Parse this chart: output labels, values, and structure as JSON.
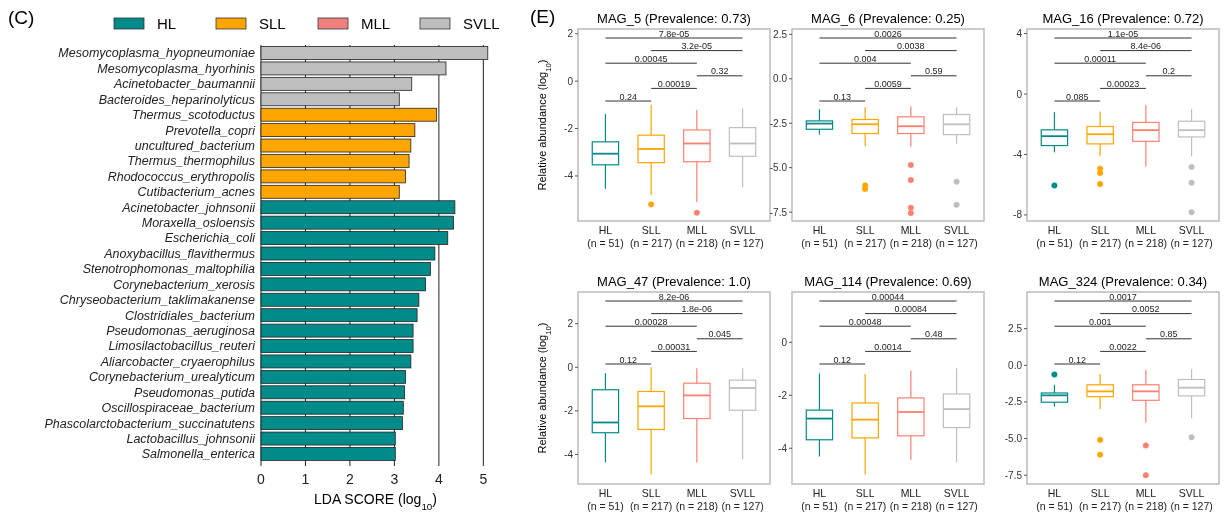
{
  "chart_data": [
    {
      "type": "bar",
      "orientation": "horizontal",
      "categories": [
        "Mesomycoplasma_hyopneumoniae",
        "Mesomycoplasma_hyorhinis",
        "Acinetobacter_baumannii",
        "Bacteroides_heparinolyticus",
        "Thermus_scotoductus",
        "Prevotella_copri",
        "uncultured_bacterium",
        "Thermus_thermophilus",
        "Rhodococcus_erythropolis",
        "Cutibacterium_acnes",
        "Acinetobacter_johnsonii",
        "Moraxella_osloensis",
        "Escherichia_coli",
        "Anoxybacillus_flavithermus",
        "Stenotrophomonas_maltophilia",
        "Corynebacterium_xerosis",
        "Chryseobacterium_taklimakanense",
        "Clostridiales_bacterium",
        "Pseudomonas_aeruginosa",
        "Limosilactobacillus_reuteri",
        "Aliarcobacter_cryaerophilus",
        "Corynebacterium_urealyticum",
        "Pseudomonas_putida",
        "Oscillospiraceae_bacterium",
        "Phascolarctobacterium_succinatutens",
        "Lactobacillus_johnsonii",
        "Salmonella_enterica"
      ],
      "series": [
        {
          "name": "HL",
          "color": "#008b8b",
          "values": [
            null,
            null,
            null,
            null,
            null,
            null,
            null,
            null,
            null,
            null,
            4.36,
            4.33,
            4.2,
            3.91,
            3.81,
            3.7,
            3.55,
            3.51,
            3.42,
            3.42,
            3.37,
            3.25,
            3.23,
            3.2,
            3.18,
            3.02,
            3.02
          ]
        },
        {
          "name": "SLL",
          "color": "#ffa500",
          "values": [
            null,
            null,
            null,
            null,
            3.95,
            3.46,
            3.37,
            3.33,
            3.25,
            3.11,
            null,
            null,
            null,
            null,
            null,
            null,
            null,
            null,
            null,
            null,
            null,
            null,
            null,
            null,
            null,
            null,
            null
          ]
        },
        {
          "name": "MLL",
          "color": "#f08080",
          "values": [
            null,
            null,
            null,
            null,
            null,
            null,
            null,
            null,
            null,
            null,
            null,
            null,
            null,
            null,
            null,
            null,
            null,
            null,
            null,
            null,
            null,
            null,
            null,
            null,
            null,
            null,
            null
          ]
        },
        {
          "name": "SVLL",
          "color": "#bebebe",
          "values": [
            5.1,
            4.16,
            3.39,
            3.11,
            null,
            null,
            null,
            null,
            null,
            null,
            null,
            null,
            null,
            null,
            null,
            null,
            null,
            null,
            null,
            null,
            null,
            null,
            null,
            null,
            null,
            null,
            null
          ]
        }
      ],
      "xlim": [
        0,
        5.15
      ],
      "xticks": [
        0,
        1,
        2,
        3,
        4,
        5
      ],
      "xlabel": "LDA SCORE (log$_{10}$)",
      "grid": "x",
      "legend": "top",
      "annotations": [
        "(C)"
      ]
    },
    {
      "type": "box",
      "title": "MAG_5 (Prevalence: 0.73)",
      "ylabel": "Relative abundance (log$_{10}$)",
      "categories": [
        "HL\n(n = 51)",
        "SLL\n(n = 217)",
        "MLL\n(n = 218)",
        "SVLL\n(n = 127)"
      ],
      "colors": [
        "#008b8b",
        "#ffa500",
        "#fa8072",
        "#bebebe"
      ],
      "ylim": [
        -5.9,
        2.2
      ],
      "yticks": [
        -4,
        -2,
        0,
        2
      ],
      "boxes": [
        {
          "low": -4.54,
          "q1": -3.53,
          "median": -3.06,
          "q3": -2.56,
          "high": -1.38
        },
        {
          "low": -4.8,
          "q1": -3.44,
          "median": -2.86,
          "q3": -2.28,
          "high": -1.0,
          "outliers": [
            -5.2
          ]
        },
        {
          "low": -5.1,
          "q1": -3.4,
          "median": -2.63,
          "q3": -2.06,
          "high": -1.22,
          "outliers": [
            -5.55
          ]
        },
        {
          "low": -4.47,
          "q1": -3.17,
          "median": -2.63,
          "q3": -1.96,
          "high": -1.15
        }
      ],
      "annotations": [
        "(E)",
        "0.24",
        "0.00019",
        "0.32",
        "0.00045",
        "3.2e-05",
        "7.8e-05"
      ]
    },
    {
      "type": "box",
      "title": "MAG_6 (Prevalence: 0.25)",
      "categories": [
        "HL\n(n = 51)",
        "SLL\n(n = 217)",
        "MLL\n(n = 218)",
        "SVLL\n(n = 127)"
      ],
      "colors": [
        "#008b8b",
        "#ffa500",
        "#fa8072",
        "#bebebe"
      ],
      "ylim": [
        -8.0,
        2.8
      ],
      "yticks": [
        {
          "value": -7.5,
          "label": "-7.5"
        },
        {
          "value": -5,
          "label": "-5.0"
        },
        {
          "value": -2.5,
          "label": "-2.5"
        },
        {
          "value": 0,
          "label": "0.0"
        },
        {
          "value": 2.5,
          "label": "2.5"
        }
      ],
      "boxes": [
        {
          "low": -3.14,
          "q1": -2.84,
          "median": -2.52,
          "q3": -2.37,
          "high": -1.71
        },
        {
          "low": -3.8,
          "q1": -3.08,
          "median": -2.56,
          "q3": -2.29,
          "high": -1.6,
          "outliers": [
            -6.0,
            -6.2
          ]
        },
        {
          "low": -3.83,
          "q1": -3.08,
          "median": -2.67,
          "q3": -2.14,
          "high": -1.54,
          "outliers": [
            -4.85,
            -5.7,
            -7.25,
            -7.55
          ]
        },
        {
          "low": -3.65,
          "q1": -3.14,
          "median": -2.56,
          "q3": -2.01,
          "high": -1.6,
          "outliers": [
            -5.79,
            -7.09
          ]
        }
      ],
      "annotations": [
        "0.13",
        "0.0059",
        "0.59",
        "0.004",
        "0.0038",
        "0.0026"
      ]
    },
    {
      "type": "box",
      "title": "MAG_16 (Prevalence: 0.72)",
      "categories": [
        "HL\n(n = 51)",
        "SLL\n(n = 217)",
        "MLL\n(n = 218)",
        "SVLL\n(n = 127)"
      ],
      "colors": [
        "#008b8b",
        "#ffa500",
        "#fa8072",
        "#bebebe"
      ],
      "ylim": [
        -8.4,
        4.3
      ],
      "yticks": [
        -8,
        -4,
        0,
        4
      ],
      "boxes": [
        {
          "low": -3.86,
          "q1": -3.41,
          "median": -2.79,
          "q3": -2.37,
          "high": -1.2,
          "outliers": [
            -6.05
          ]
        },
        {
          "low": -4.12,
          "q1": -3.3,
          "median": -2.66,
          "q3": -2.15,
          "high": -1.15,
          "outliers": [
            -4.94,
            -5.23,
            -5.96
          ]
        },
        {
          "low": -4.79,
          "q1": -3.13,
          "median": -2.39,
          "q3": -1.88,
          "high": -0.75
        },
        {
          "low": -4.12,
          "q1": -2.84,
          "median": -2.39,
          "q3": -1.8,
          "high": -1.0,
          "outliers": [
            -4.83,
            -5.87,
            -7.82
          ]
        }
      ],
      "annotations": [
        "0.085",
        "0.00023",
        "0.2",
        "0.00011",
        "8.4e-06",
        "1.1e-05"
      ]
    },
    {
      "type": "box",
      "title": "MAG_47 (Prevalence: 1.0)",
      "ylabel": "Relative abundance (log$_{10}$)",
      "categories": [
        "HL\n(n = 51)",
        "SLL\n(n = 217)",
        "MLL\n(n = 218)",
        "SVLL\n(n = 127)"
      ],
      "colors": [
        "#008b8b",
        "#ffa500",
        "#fa8072",
        "#bebebe"
      ],
      "ylim": [
        -5.35,
        3.45
      ],
      "yticks": [
        -4,
        -2,
        0,
        2
      ],
      "boxes": [
        {
          "low": -4.36,
          "q1": -3.0,
          "median": -2.53,
          "q3": -1.03,
          "high": -0.27
        },
        {
          "low": -4.92,
          "q1": -2.85,
          "median": -1.79,
          "q3": -1.11,
          "high": 0
        },
        {
          "low": -4.36,
          "q1": -2.35,
          "median": -1.29,
          "q3": -0.73,
          "high": -0.05
        },
        {
          "low": -4.21,
          "q1": -1.97,
          "median": -0.95,
          "q3": -0.59,
          "high": -0.05
        }
      ],
      "annotations": [
        "0.12",
        "0.00031",
        "0.045",
        "0.00028",
        "1.8e-06",
        "8.2e-06"
      ]
    },
    {
      "type": "box",
      "title": "MAG_114 (Prevalence: 0.69)",
      "categories": [
        "HL\n(n = 51)",
        "SLL\n(n = 217)",
        "MLL\n(n = 218)",
        "SVLL\n(n = 127)"
      ],
      "colors": [
        "#008b8b",
        "#ffa500",
        "#fa8072",
        "#bebebe"
      ],
      "ylim": [
        -5.35,
        1.9
      ],
      "yticks": [
        -4,
        -2,
        0
      ],
      "boxes": [
        {
          "low": -4.31,
          "q1": -3.68,
          "median": -2.88,
          "q3": -2.56,
          "high": -1.17
        },
        {
          "low": -4.99,
          "q1": -3.61,
          "median": -2.92,
          "q3": -2.29,
          "high": -1.2
        },
        {
          "low": -4.43,
          "q1": -3.53,
          "median": -2.63,
          "q3": -2.1,
          "high": -1.06
        },
        {
          "low": -4.53,
          "q1": -3.22,
          "median": -2.52,
          "q3": -1.95,
          "high": -0.98
        }
      ],
      "annotations": [
        "0.12",
        "0.0014",
        "0.48",
        "0.00048",
        "0.00084",
        "0.00044"
      ]
    },
    {
      "type": "box",
      "title": "MAG_324 (Prevalence: 0.34)",
      "categories": [
        "HL\n(n = 51)",
        "SLL\n(n = 217)",
        "MLL\n(n = 218)",
        "SVLL\n(n = 127)"
      ],
      "colors": [
        "#008b8b",
        "#ffa500",
        "#fa8072",
        "#bebebe"
      ],
      "ylim": [
        -8.1,
        5.0
      ],
      "yticks": [
        {
          "value": -7.5,
          "label": "-7.5"
        },
        {
          "value": -5,
          "label": "-5.0"
        },
        {
          "value": -2.5,
          "label": "-2.5"
        },
        {
          "value": 0,
          "label": "0.0"
        },
        {
          "value": 2.5,
          "label": "2.5"
        }
      ],
      "boxes": [
        {
          "low": -2.82,
          "q1": -2.52,
          "median": -2.05,
          "q3": -1.89,
          "high": -1.33,
          "outliers": [
            -0.63
          ]
        },
        {
          "low": -3.0,
          "q1": -2.14,
          "median": -1.78,
          "q3": -1.33,
          "high": -0.59,
          "outliers": [
            -5.09,
            -6.1
          ]
        },
        {
          "low": -3.9,
          "q1": -2.39,
          "median": -1.78,
          "q3": -1.33,
          "high": -0.32,
          "outliers": [
            -5.47,
            -7.5
          ]
        },
        {
          "low": -3.63,
          "q1": -2.09,
          "median": -1.53,
          "q3": -0.97,
          "high": -0.25,
          "outliers": [
            -4.91
          ]
        }
      ],
      "annotations": [
        "0.12",
        "0.0022",
        "0.85",
        "0.001",
        "0.0052",
        "0.0017"
      ]
    }
  ]
}
